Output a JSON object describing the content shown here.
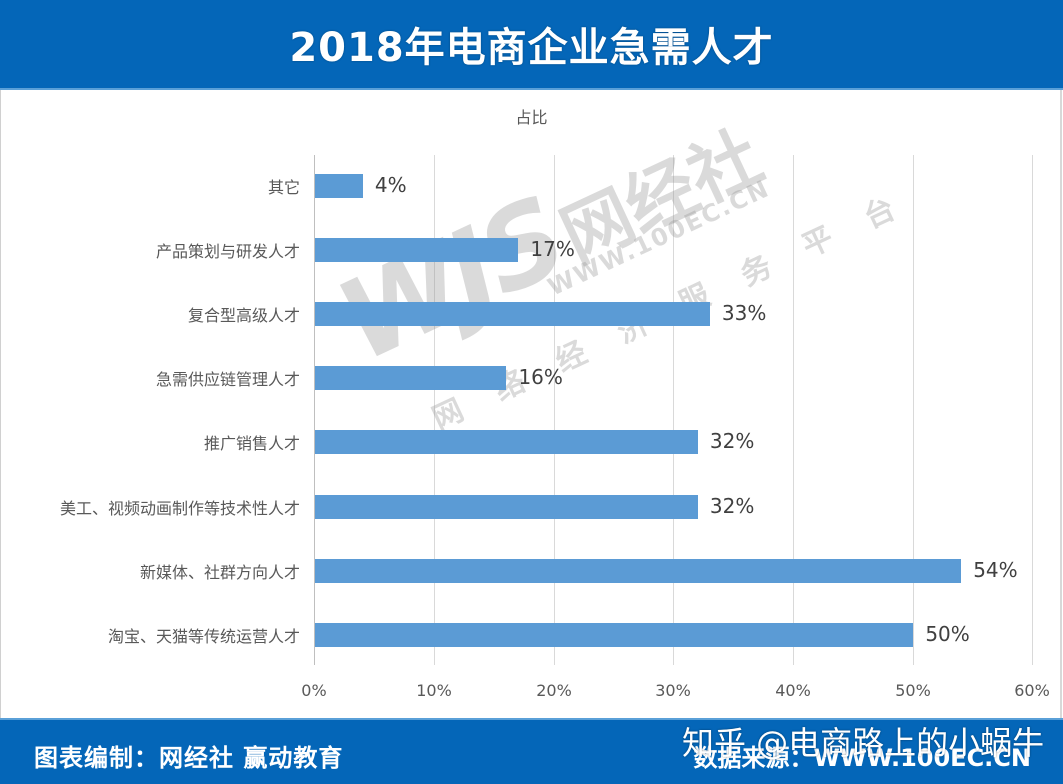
{
  "header": {
    "title": "2018年电商企业急需人才"
  },
  "subtitle": "占比",
  "footer": {
    "left": "图表编制：网经社 赢动教育",
    "right": "数据来源：WWW.100EC.CN"
  },
  "overlay": {
    "zhihu_credit": "知乎 @电商路上的小蜗牛"
  },
  "watermark": {
    "logo": "WJS",
    "brand": "网经社",
    "url": "WWW.100EC.CN",
    "slogan": "网络经济服务平台"
  },
  "colors": {
    "bar": "#5b9bd5",
    "header_bg": "#0466b8",
    "grid": "#d9d9d9"
  },
  "chart_data": {
    "type": "bar",
    "orientation": "horizontal",
    "title": "2018年电商企业急需人才",
    "subtitle": "占比",
    "xlabel": "",
    "ylabel": "",
    "categories": [
      "其它",
      "产品策划与研发人才",
      "复合型高级人才",
      "急需供应链管理人才",
      "推广销售人才",
      "美工、视频动画制作等技术性人才",
      "新媒体、社群方向人才",
      "淘宝、天猫等传统运营人才"
    ],
    "values": [
      4,
      17,
      33,
      16,
      32,
      32,
      54,
      50
    ],
    "value_labels": [
      "4%",
      "17%",
      "33%",
      "16%",
      "32%",
      "32%",
      "54%",
      "50%"
    ],
    "unit": "%",
    "xlim": [
      0,
      60
    ],
    "x_ticks": [
      "0%",
      "10%",
      "20%",
      "30%",
      "40%",
      "50%",
      "60%"
    ],
    "grid": true,
    "legend": null,
    "source": "数据来源：WWW.100EC.CN"
  }
}
